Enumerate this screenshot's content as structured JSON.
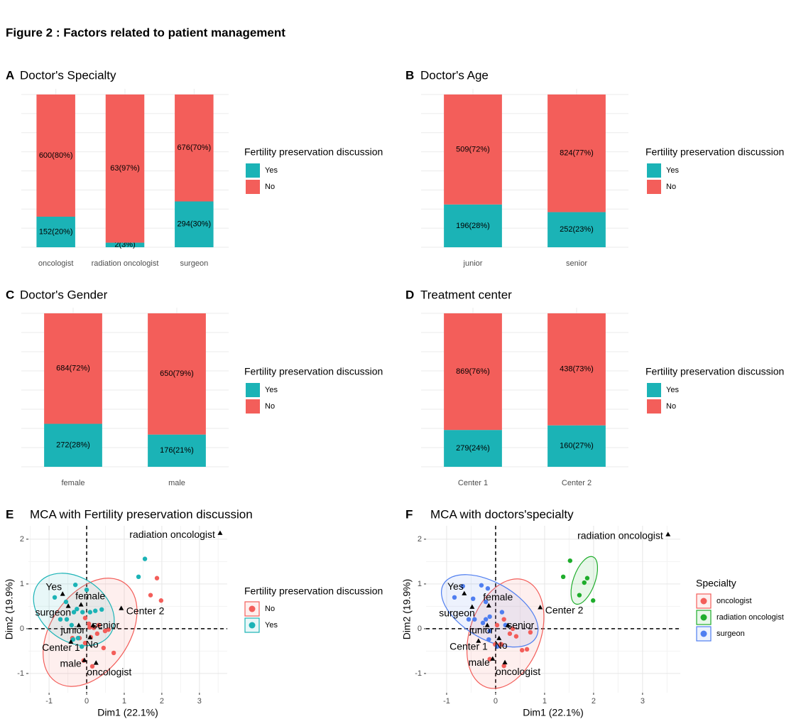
{
  "title": "Figure 2 : Factors related to patient management",
  "chart_data": [
    {
      "type": "bar",
      "panel": "A",
      "title": "Doctor's Specialty",
      "categories": [
        "oncologist",
        "radiation oncologist",
        "surgeon"
      ],
      "ylim": [
        0,
        100
      ],
      "legend_title": "Fertility preservation discussion",
      "series": [
        {
          "name": "Yes",
          "color": "#1bb3b6",
          "values": [
            20,
            3,
            30
          ],
          "value_labels": [
            "152(20%)",
            "2(3%)",
            "294(30%)"
          ]
        },
        {
          "name": "No",
          "color": "#f35e5a",
          "values": [
            80,
            97,
            70
          ],
          "value_labels": [
            "600(80%)",
            "63(97%)",
            "676(70%)"
          ]
        }
      ]
    },
    {
      "type": "bar",
      "panel": "B",
      "title": "Doctor's Age",
      "categories": [
        "junior",
        "senior"
      ],
      "ylim": [
        0,
        100
      ],
      "legend_title": "Fertility preservation discussion",
      "series": [
        {
          "name": "Yes",
          "color": "#1bb3b6",
          "values": [
            28,
            23
          ],
          "value_labels": [
            "196(28%)",
            "252(23%)"
          ]
        },
        {
          "name": "No",
          "color": "#f35e5a",
          "values": [
            72,
            77
          ],
          "value_labels": [
            "509(72%)",
            "824(77%)"
          ]
        }
      ]
    },
    {
      "type": "bar",
      "panel": "C",
      "title": "Doctor's Gender",
      "categories": [
        "female",
        "male"
      ],
      "ylim": [
        0,
        100
      ],
      "legend_title": "Fertility preservation discussion",
      "series": [
        {
          "name": "Yes",
          "color": "#1bb3b6",
          "values": [
            28,
            21
          ],
          "value_labels": [
            "272(28%)",
            "176(21%)"
          ]
        },
        {
          "name": "No",
          "color": "#f35e5a",
          "values": [
            72,
            79
          ],
          "value_labels": [
            "684(72%)",
            "650(79%)"
          ]
        }
      ]
    },
    {
      "type": "bar",
      "panel": "D",
      "title": "Treatment center",
      "categories": [
        "Center 1",
        "Center 2"
      ],
      "ylim": [
        0,
        100
      ],
      "legend_title": "Fertility preservation discussion",
      "series": [
        {
          "name": "Yes",
          "color": "#1bb3b6",
          "values": [
            24,
            27
          ],
          "value_labels": [
            "279(24%)",
            "160(27%)"
          ]
        },
        {
          "name": "No",
          "color": "#f35e5a",
          "values": [
            76,
            73
          ],
          "value_labels": [
            "869(76%)",
            "438(73%)"
          ]
        }
      ]
    },
    {
      "type": "scatter",
      "panel": "E",
      "title": "MCA with Fertility preservation discussion",
      "xlabel": "Dim1 (22.1%)",
      "ylabel": "Dim2 (19.9%)",
      "xlim": [
        -1.55,
        3.74
      ],
      "ylim": [
        -1.43,
        2.3
      ],
      "xticks": [
        -1,
        0,
        1,
        2,
        3
      ],
      "yticks": [
        -1,
        0,
        1,
        2
      ],
      "legend_title": "Fertility preservation discussion",
      "series": [
        {
          "name": "No",
          "color": "#f35e5a",
          "x": [
            1.87,
            1.7,
            1.98,
            -0.04,
            0.06,
            0.19,
            0.32,
            0.58,
            0.49,
            -0.38,
            -0.19,
            0.11,
            0.45,
            0.72,
            -0.08,
            0.15,
            -0.04,
            0.28,
            0.08
          ],
          "values": [
            1.13,
            0.75,
            0.63,
            0.24,
            0.11,
            0.02,
            0.08,
            -0.02,
            -0.05,
            -0.21,
            -0.21,
            -0.19,
            -0.43,
            -0.54,
            -0.71,
            -0.84,
            -0.32,
            -0.11,
            0.03
          ],
          "ellipse": {
            "center": [
              0.09,
              -0.08
            ],
            "radii": [
              1.6,
              0.87
            ],
            "angle": -55
          }
        },
        {
          "name": "Yes",
          "color": "#1bb3b6",
          "x": [
            1.55,
            1.38,
            -0.3,
            -0.85,
            0.0,
            -0.55,
            -0.26,
            -0.11,
            0.23,
            0.4,
            -0.7,
            -0.53,
            -0.4,
            -0.34,
            -0.36,
            -0.13,
            0.09,
            -0.23
          ],
          "values": [
            1.56,
            1.16,
            0.98,
            0.7,
            0.87,
            0.6,
            0.44,
            0.37,
            0.4,
            0.43,
            0.21,
            0.21,
            0.08,
            0.37,
            -0.24,
            -0.4,
            0.37,
            -0.21
          ],
          "ellipse": {
            "center": [
              -0.34,
              0.43
            ],
            "radii": [
              1.17,
              0.71
            ],
            "angle": 35
          }
        }
      ],
      "variables": {
        "labels": [
          "radiation oncologist",
          "Yes",
          "female",
          "surgeon",
          "Center 2",
          "senior",
          "junior",
          "Center 1",
          "No",
          "male",
          "oncologist"
        ],
        "x": [
          3.55,
          -0.64,
          -0.15,
          -0.49,
          0.92,
          0.17,
          -0.21,
          -0.42,
          0.09,
          -0.06,
          0.25
        ],
        "y": [
          2.14,
          0.78,
          0.54,
          0.51,
          0.46,
          0.08,
          0.08,
          -0.29,
          -0.19,
          -0.7,
          -0.76
        ]
      }
    },
    {
      "type": "scatter",
      "panel": "F",
      "title": "MCA with doctors'specialty",
      "xlabel": "Dim1 (22.1%)",
      "ylabel": "Dim2 (19.9%)",
      "xlim": [
        -1.42,
        3.77
      ],
      "ylim": [
        -1.43,
        2.3
      ],
      "xticks": [
        -1,
        0,
        1,
        2,
        3
      ],
      "yticks": [
        -1,
        0,
        1,
        2
      ],
      "legend_title": "Specialty",
      "series": [
        {
          "name": "oncologist",
          "color": "#f35e5a",
          "x": [
            0.35,
            0.17,
            0.03,
            0.29,
            0.42,
            0.1,
            -0.01,
            0.64,
            0.71,
            -0.12,
            0.17,
            0.54,
            0.12
          ],
          "values": [
            0.0,
            0.21,
            0.08,
            -0.11,
            -0.17,
            -0.35,
            -0.35,
            -0.46,
            -0.08,
            -0.68,
            -0.83,
            -0.48,
            -0.35
          ],
          "ellipse": {
            "center": [
              0.2,
              -0.11
            ],
            "radii": [
              1.16,
              0.79
            ],
            "angle": -70
          }
        },
        {
          "name": "radiation oncologist",
          "color": "#1fad2c",
          "x": [
            1.52,
            1.38,
            1.87,
            1.71,
            1.99,
            1.81
          ],
          "values": [
            1.52,
            1.16,
            1.13,
            0.75,
            0.63,
            1.03
          ],
          "ellipse": {
            "center": [
              1.81,
              1.08
            ],
            "radii": [
              0.22,
              0.56
            ],
            "angle": 20
          }
        },
        {
          "name": "surgeon",
          "color": "#4f7ef0",
          "x": [
            -0.84,
            -0.67,
            -0.29,
            -0.16,
            -0.46,
            -0.2,
            0.13,
            -0.12,
            -0.55,
            -0.43,
            -0.26,
            -0.12,
            -0.14,
            0.03,
            0.2,
            -0.2
          ],
          "values": [
            0.7,
            0.95,
            0.97,
            0.9,
            0.67,
            0.6,
            0.37,
            0.27,
            0.21,
            0.21,
            0.13,
            -0.05,
            -0.24,
            -0.4,
            0.08,
            0.21
          ],
          "ellipse": {
            "center": [
              -0.12,
              0.4
            ],
            "radii": [
              1.09,
              0.63
            ],
            "angle": 30
          }
        }
      ],
      "variables": {
        "labels": [
          "radiation oncologist",
          "Yes",
          "female",
          "surgeon",
          "Center 2",
          "senior",
          "junior",
          "Center 1",
          "No",
          "male",
          "oncologist"
        ],
        "x": [
          3.52,
          -0.64,
          -0.14,
          -0.48,
          0.91,
          0.25,
          -0.17,
          -0.35,
          0.07,
          -0.06,
          0.19
        ],
        "y": [
          2.11,
          0.79,
          0.52,
          0.49,
          0.48,
          0.08,
          0.08,
          -0.27,
          -0.21,
          -0.67,
          -0.75
        ]
      }
    }
  ]
}
